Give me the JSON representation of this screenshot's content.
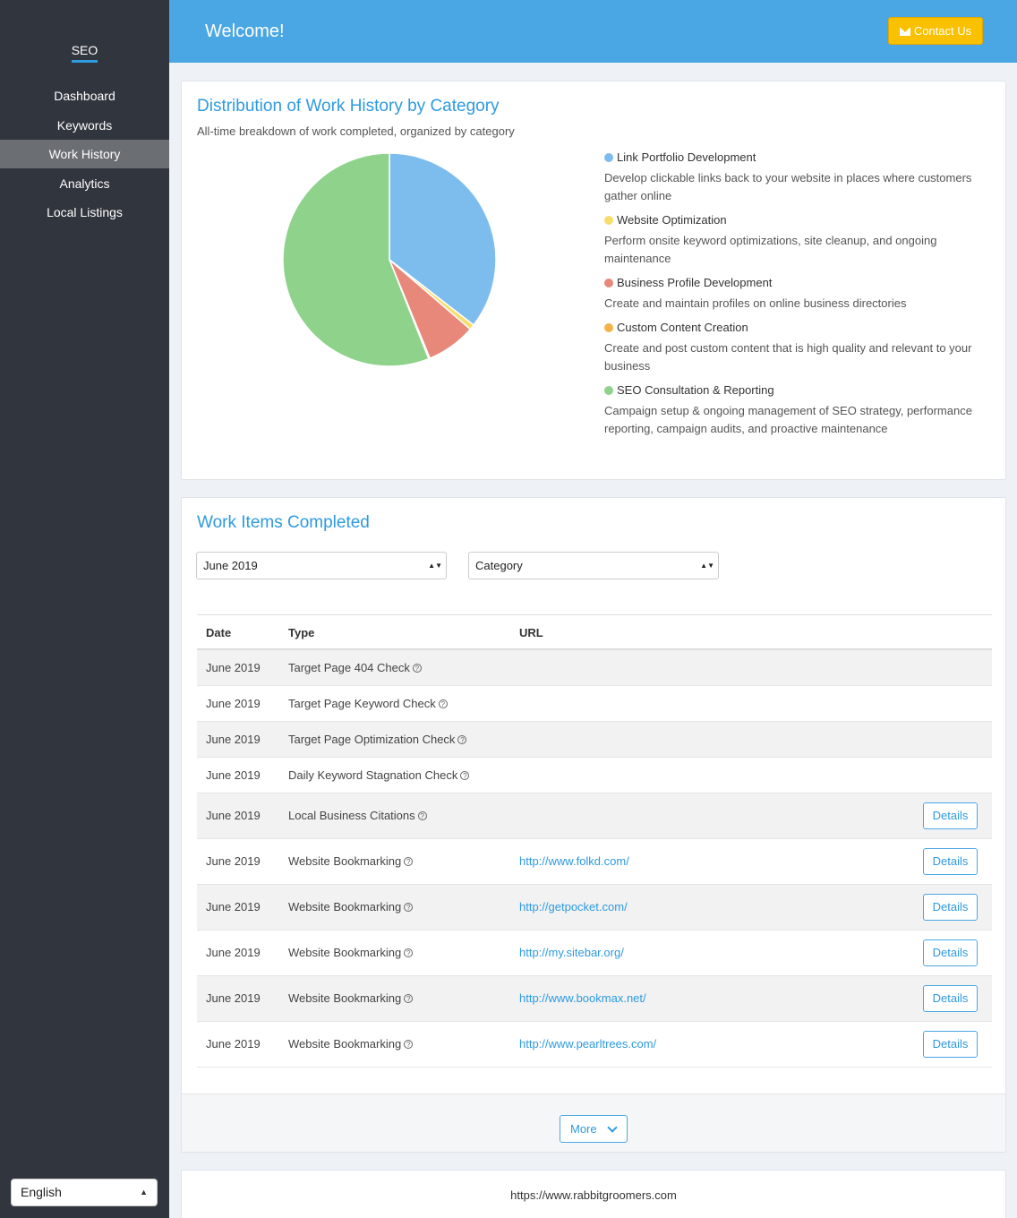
{
  "sidebar": {
    "brand": "SEO",
    "items": [
      {
        "label": "Dashboard",
        "active": false
      },
      {
        "label": "Keywords",
        "active": false
      },
      {
        "label": "Work History",
        "active": true
      },
      {
        "label": "Analytics",
        "active": false
      },
      {
        "label": "Local Listings",
        "active": false
      }
    ],
    "language": "English"
  },
  "header": {
    "title": "Welcome!",
    "contact_label": "Contact Us",
    "contact_icon": "envelope-icon"
  },
  "distribution": {
    "title": "Distribution of Work History by Category",
    "subtitle": "All-time breakdown of work completed, organized by category"
  },
  "chart_data": {
    "type": "pie",
    "title": "Distribution of Work History by Category",
    "slices": [
      {
        "name": "Link Portfolio Development",
        "value": 35.5,
        "color": "#7dbdee",
        "description": "Develop clickable links back to your website in places where customers gather online"
      },
      {
        "name": "Website Optimization",
        "value": 0.8,
        "color": "#f7dd6a",
        "description": "Perform onsite keyword optimizations, site cleanup, and ongoing maintenance"
      },
      {
        "name": "Business Profile Development",
        "value": 7.5,
        "color": "#e8887a",
        "description": "Create and maintain profiles on online business directories"
      },
      {
        "name": "Custom Content Creation",
        "value": 0.2,
        "color": "#f4b24a",
        "description": "Create and post custom content that is high quality and relevant to your business"
      },
      {
        "name": "SEO Consultation & Reporting",
        "value": 56.0,
        "color": "#8ed28b",
        "description": "Campaign setup & ongoing management of SEO strategy, performance reporting, campaign audits, and proactive maintenance"
      }
    ]
  },
  "work_items": {
    "title": "Work Items Completed",
    "month_select": "June 2019",
    "category_select": "Category",
    "columns": [
      "Date",
      "Type",
      "URL"
    ],
    "rows": [
      {
        "date": "June 2019",
        "type": "Target Page 404 Check",
        "url": "",
        "details": ""
      },
      {
        "date": "June 2019",
        "type": "Target Page Keyword Check",
        "url": "",
        "details": ""
      },
      {
        "date": "June 2019",
        "type": "Target Page Optimization Check",
        "url": "",
        "details": ""
      },
      {
        "date": "June 2019",
        "type": "Daily Keyword Stagnation Check",
        "url": "",
        "details": ""
      },
      {
        "date": "June 2019",
        "type": "Local Business Citations",
        "url": "",
        "details": "Details"
      },
      {
        "date": "June 2019",
        "type": "Website Bookmarking",
        "url": "http://www.folkd.com/",
        "details": "Details"
      },
      {
        "date": "June 2019",
        "type": "Website Bookmarking",
        "url": "http://getpocket.com/",
        "details": "Details"
      },
      {
        "date": "June 2019",
        "type": "Website Bookmarking",
        "url": "http://my.sitebar.org/",
        "details": "Details"
      },
      {
        "date": "June 2019",
        "type": "Website Bookmarking",
        "url": "http://www.bookmax.net/",
        "details": "Details"
      },
      {
        "date": "June 2019",
        "type": "Website Bookmarking",
        "url": "http://www.pearltrees.com/",
        "details": "Details"
      }
    ],
    "more_label": "More"
  },
  "footer": {
    "site": "https://www.rabbitgroomers.com"
  }
}
